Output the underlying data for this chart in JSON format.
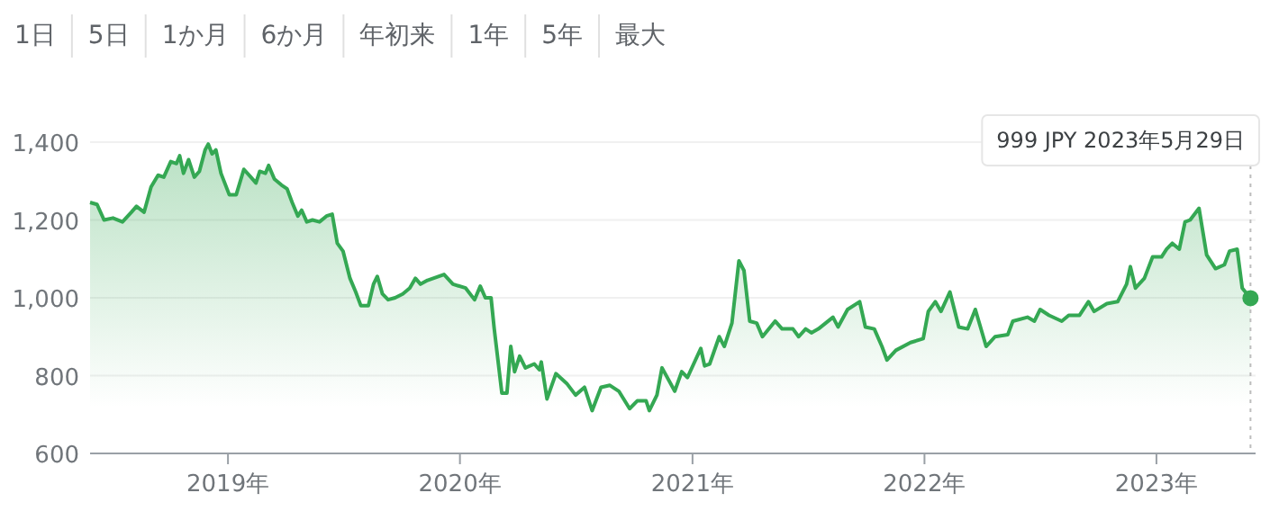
{
  "chart_data": {
    "type": "area",
    "annotations": [
      "1日",
      "5日",
      "1か月",
      "6か月",
      "年初来",
      "1年",
      "5年",
      "最大",
      "999 JPY  2023年5月29日"
    ],
    "x": [
      "2018-05-29",
      "2018-06-09",
      "2018-06-20",
      "2018-07-04",
      "2018-07-19",
      "2018-08-02",
      "2018-08-10",
      "2018-08-22",
      "2018-09-02",
      "2018-09-13",
      "2018-09-22",
      "2018-10-03",
      "2018-10-12",
      "2018-10-17",
      "2018-10-23",
      "2018-10-31",
      "2018-11-09",
      "2018-11-17",
      "2018-11-26",
      "2018-12-01",
      "2018-12-07",
      "2018-12-13",
      "2018-12-21",
      "2019-01-03",
      "2019-01-14",
      "2019-01-26",
      "2019-02-06",
      "2019-02-14",
      "2019-02-20",
      "2019-03-01",
      "2019-03-06",
      "2019-03-15",
      "2019-03-26",
      "2019-04-04",
      "2019-04-12",
      "2019-04-21",
      "2019-04-27",
      "2019-05-05",
      "2019-05-14",
      "2019-05-25",
      "2019-06-05",
      "2019-06-14",
      "2019-06-22",
      "2019-07-01",
      "2019-07-12",
      "2019-07-21",
      "2019-07-29",
      "2019-08-10",
      "2019-08-18",
      "2019-08-24",
      "2019-09-01",
      "2019-09-10",
      "2019-09-21",
      "2019-10-03",
      "2019-10-14",
      "2019-10-23",
      "2019-10-31",
      "2019-11-11",
      "2019-11-20",
      "2019-12-07",
      "2019-12-21",
      "2020-01-10",
      "2020-01-24",
      "2020-02-02",
      "2020-02-10",
      "2020-02-19",
      "2020-02-24",
      "2020-03-07",
      "2020-03-15",
      "2020-03-21",
      "2020-03-27",
      "2020-04-04",
      "2020-04-13",
      "2020-04-27",
      "2020-05-05",
      "2020-05-08",
      "2020-05-17",
      "2020-05-31",
      "2020-06-17",
      "2020-07-01",
      "2020-07-15",
      "2020-07-27",
      "2020-08-10",
      "2020-08-24",
      "2020-09-07",
      "2020-09-24",
      "2020-10-06",
      "2020-10-20",
      "2020-10-25",
      "2020-11-06",
      "2020-11-14",
      "2020-12-04",
      "2020-12-15",
      "2020-12-24",
      "2021-01-14",
      "2021-01-20",
      "2021-01-28",
      "2021-02-12",
      "2021-02-20",
      "2021-03-04",
      "2021-03-15",
      "2021-03-23",
      "2021-04-01",
      "2021-04-12",
      "2021-04-21",
      "2021-05-11",
      "2021-05-22",
      "2021-06-08",
      "2021-06-17",
      "2021-06-28",
      "2021-07-07",
      "2021-07-18",
      "2021-08-10",
      "2021-08-18",
      "2021-09-02",
      "2021-09-21",
      "2021-09-30",
      "2021-10-14",
      "2021-10-26",
      "2021-11-03",
      "2021-11-17",
      "2021-12-10",
      "2021-12-30",
      "2022-01-07",
      "2022-01-18",
      "2022-01-27",
      "2022-02-10",
      "2022-02-24",
      "2022-03-10",
      "2022-03-22",
      "2022-04-08",
      "2022-04-22",
      "2022-05-12",
      "2022-05-20",
      "2022-06-12",
      "2022-06-23",
      "2022-07-02",
      "2022-07-16",
      "2022-08-05",
      "2022-08-16",
      "2022-09-02",
      "2022-09-16",
      "2022-09-25",
      "2022-10-15",
      "2022-11-01",
      "2022-11-15",
      "2022-11-21",
      "2022-11-29",
      "2022-12-13",
      "2022-12-26",
      "2023-01-09",
      "2023-01-17",
      "2023-01-26",
      "2023-02-06",
      "2023-02-15",
      "2023-02-23",
      "2023-03-09",
      "2023-03-21",
      "2023-04-04",
      "2023-04-18",
      "2023-04-26",
      "2023-05-08",
      "2023-05-16",
      "2023-05-29"
    ],
    "series": [
      {
        "color": "#34a853",
        "values": [
          1245,
          1240,
          1200,
          1205,
          1195,
          1220,
          1235,
          1220,
          1285,
          1315,
          1310,
          1350,
          1345,
          1365,
          1320,
          1355,
          1310,
          1325,
          1380,
          1395,
          1370,
          1380,
          1320,
          1265,
          1265,
          1330,
          1310,
          1295,
          1325,
          1320,
          1340,
          1305,
          1290,
          1280,
          1245,
          1210,
          1225,
          1195,
          1200,
          1195,
          1210,
          1215,
          1140,
          1120,
          1050,
          1015,
          980,
          980,
          1035,
          1055,
          1010,
          995,
          1000,
          1010,
          1025,
          1050,
          1035,
          1045,
          1050,
          1060,
          1035,
          1025,
          995,
          1030,
          1000,
          1000,
          920,
          755,
          755,
          875,
          810,
          850,
          820,
          830,
          815,
          835,
          740,
          805,
          780,
          750,
          770,
          710,
          770,
          775,
          760,
          715,
          735,
          735,
          710,
          750,
          820,
          760,
          810,
          795,
          870,
          825,
          830,
          900,
          875,
          935,
          1095,
          1070,
          940,
          935,
          900,
          940,
          920,
          920,
          900,
          920,
          910,
          920,
          950,
          925,
          970,
          990,
          925,
          920,
          875,
          840,
          865,
          885,
          895,
          965,
          990,
          965,
          1015,
          925,
          920,
          970,
          875,
          900,
          905,
          940,
          950,
          940,
          970,
          955,
          940,
          955,
          955,
          990,
          965,
          985,
          990,
          1035,
          1080,
          1025,
          1050,
          1105,
          1105,
          1125,
          1140,
          1125,
          1195,
          1200,
          1230,
          1110,
          1075,
          1085,
          1120,
          1125,
          1025,
          999
        ]
      }
    ],
    "xlim": [
      "2018-05-29",
      "2023-06-06"
    ],
    "xticks": [
      {
        "value": "2019-01-01",
        "label": "2019年"
      },
      {
        "value": "2020-01-01",
        "label": "2020年"
      },
      {
        "value": "2021-01-01",
        "label": "2021年"
      },
      {
        "value": "2022-01-01",
        "label": "2022年"
      },
      {
        "value": "2023-01-01",
        "label": "2023年"
      }
    ],
    "ylim": [
      600,
      1400
    ],
    "yticks": [
      {
        "value": 600,
        "label": "600"
      },
      {
        "value": 800,
        "label": "800"
      },
      {
        "value": 1000,
        "label": "1,000"
      },
      {
        "value": 1200,
        "label": "1,200"
      },
      {
        "value": 1400,
        "label": "1,400"
      }
    ],
    "ref_lines": [
      {
        "axis": "x",
        "value": "2023-05-29",
        "color": "#bdbdbd",
        "line_style": "dotted"
      }
    ],
    "grid": "y"
  }
}
